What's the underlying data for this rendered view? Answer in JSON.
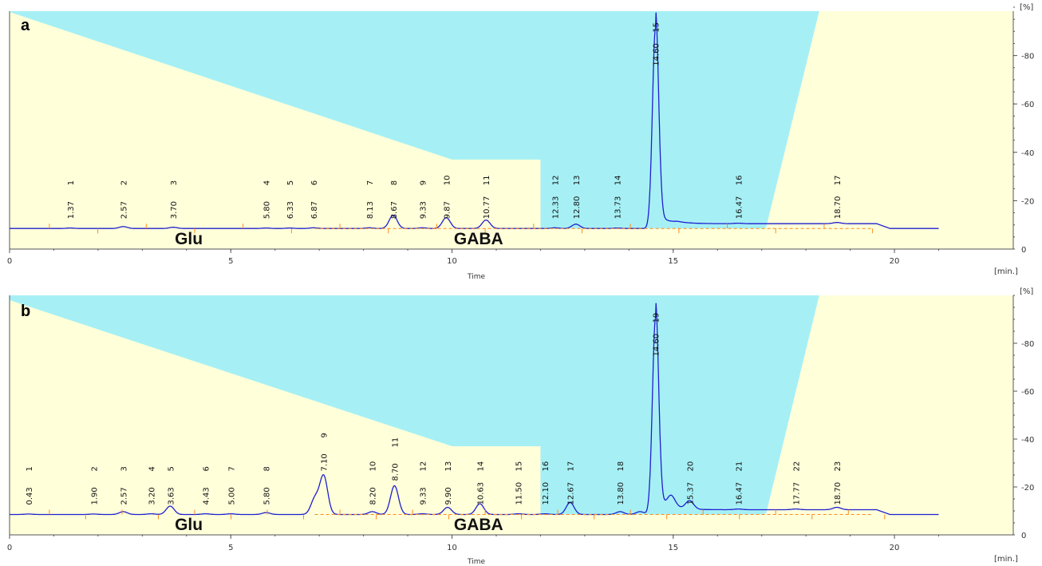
{
  "chart_data": [
    {
      "type": "line",
      "panel": "a",
      "xlabel": "Time",
      "x_unit": "[min.]",
      "y_unit": "[%]",
      "xlim": [
        0,
        21
      ],
      "ylim": [
        0,
        100
      ],
      "x_ticks": [
        0,
        5,
        10,
        15,
        20
      ],
      "y_ticks": [
        20,
        40,
        60,
        80
      ],
      "baseline": 8.5,
      "gradient": [
        [
          0,
          98
        ],
        [
          10,
          37
        ],
        [
          12,
          37
        ],
        [
          12,
          8.5
        ],
        [
          17,
          8.5
        ],
        [
          17.1,
          9
        ],
        [
          18.3,
          100
        ]
      ],
      "compounds": [
        {
          "name": "Glu",
          "x": 4.05
        },
        {
          "name": "GABA",
          "x": 10.6
        }
      ],
      "peaks": [
        {
          "n": "1",
          "rt": "1.37",
          "x": 1.37,
          "h": 0.2
        },
        {
          "n": "2",
          "rt": "2.57",
          "x": 2.57,
          "h": 0.8
        },
        {
          "n": "3",
          "rt": "3.70",
          "x": 3.7,
          "h": 0.5
        },
        {
          "n": "4",
          "rt": "5.80",
          "x": 5.8,
          "h": 0.2
        },
        {
          "n": "5",
          "rt": "6.33",
          "x": 6.33,
          "h": 0.2
        },
        {
          "n": "6",
          "rt": "6.87",
          "x": 6.87,
          "h": 0.3
        },
        {
          "n": "7",
          "rt": "8.13",
          "x": 8.13,
          "h": 0.3
        },
        {
          "n": "8",
          "rt": "8.67",
          "x": 8.67,
          "h": 5.5
        },
        {
          "n": "9",
          "rt": "9.33",
          "x": 9.33,
          "h": 0.3
        },
        {
          "n": "10",
          "rt": "9.87",
          "x": 9.87,
          "h": 4.5
        },
        {
          "n": "11",
          "rt": "10.77",
          "x": 10.77,
          "h": 3.5
        },
        {
          "n": "12",
          "rt": "12.33",
          "x": 12.33,
          "h": 0.3
        },
        {
          "n": "13",
          "rt": "12.80",
          "x": 12.8,
          "h": 1.8
        },
        {
          "n": "14",
          "rt": "13.73",
          "x": 13.73,
          "h": 0.2
        },
        {
          "n": "15",
          "rt": "14.60",
          "x": 14.6,
          "h": 83
        },
        {
          "n": "16",
          "rt": "16.47",
          "x": 16.47,
          "h": 0.2
        },
        {
          "n": "17",
          "rt": "18.70",
          "x": 18.7,
          "h": 0.5
        }
      ]
    },
    {
      "type": "line",
      "panel": "b",
      "xlabel": "Time",
      "x_unit": "[min.]",
      "y_unit": "[%]",
      "xlim": [
        0,
        21
      ],
      "ylim": [
        0,
        100
      ],
      "x_ticks": [
        0,
        5,
        10,
        15,
        20
      ],
      "y_ticks": [
        20,
        40,
        60,
        80
      ],
      "baseline": 8.5,
      "gradient": [
        [
          0,
          98
        ],
        [
          10,
          37
        ],
        [
          12,
          37
        ],
        [
          12,
          8.5
        ],
        [
          17,
          8.5
        ],
        [
          17.1,
          9
        ],
        [
          18.3,
          100
        ]
      ],
      "compounds": [
        {
          "name": "Glu",
          "x": 4.05
        },
        {
          "name": "GABA",
          "x": 10.6
        }
      ],
      "peaks": [
        {
          "n": "1",
          "rt": "0.43",
          "x": 0.43,
          "h": 0.2
        },
        {
          "n": "2",
          "rt": "1.90",
          "x": 1.9,
          "h": 0.2
        },
        {
          "n": "3",
          "rt": "2.57",
          "x": 2.57,
          "h": 1.2
        },
        {
          "n": "4",
          "rt": "3.20",
          "x": 3.2,
          "h": 0.3
        },
        {
          "n": "5",
          "rt": "3.63",
          "x": 3.63,
          "h": 3.5
        },
        {
          "n": "6",
          "rt": "4.43",
          "x": 4.43,
          "h": 0.3
        },
        {
          "n": "7",
          "rt": "5.00",
          "x": 5.0,
          "h": 0.3
        },
        {
          "n": "8",
          "rt": "5.80",
          "x": 5.8,
          "h": 0.8
        },
        {
          "n": "9",
          "rt": "7.10",
          "x": 7.1,
          "h": 16
        },
        {
          "n": "10",
          "rt": "8.20",
          "x": 8.2,
          "h": 1.2
        },
        {
          "n": "11",
          "rt": "8.70",
          "x": 8.7,
          "h": 12
        },
        {
          "n": "12",
          "rt": "9.33",
          "x": 9.33,
          "h": 0.3
        },
        {
          "n": "13",
          "rt": "9.90",
          "x": 9.9,
          "h": 3.0
        },
        {
          "n": "14",
          "rt": "10.63",
          "x": 10.63,
          "h": 4.5
        },
        {
          "n": "15",
          "rt": "11.50",
          "x": 11.5,
          "h": 0.3
        },
        {
          "n": "16",
          "rt": "12.10",
          "x": 12.1,
          "h": 0.3
        },
        {
          "n": "17",
          "rt": "12.67",
          "x": 12.67,
          "h": 5.0
        },
        {
          "n": "18",
          "rt": "13.80",
          "x": 13.8,
          "h": 1.2
        },
        {
          "n": "19",
          "rt": "14.60",
          "x": 14.6,
          "h": 82
        },
        {
          "n": "20",
          "rt": "15.37",
          "x": 15.37,
          "h": 3.5
        },
        {
          "n": "21",
          "rt": "16.47",
          "x": 16.47,
          "h": 0.3
        },
        {
          "n": "22",
          "rt": "17.77",
          "x": 17.77,
          "h": 0.3
        },
        {
          "n": "23",
          "rt": "18.70",
          "x": 18.7,
          "h": 1.0
        }
      ],
      "extra_unlabeled_peaks": [
        {
          "x": 6.9,
          "h": 6.5
        },
        {
          "x": 14.95,
          "h": 5.0
        },
        {
          "x": 14.25,
          "h": 1.2
        }
      ]
    }
  ],
  "colors": {
    "trace": "#1f1fcf",
    "gradient_b": "#ffffda",
    "gradient_a": "#a6f0f5",
    "integration": "#ff8a1e",
    "axis": "#555555"
  }
}
